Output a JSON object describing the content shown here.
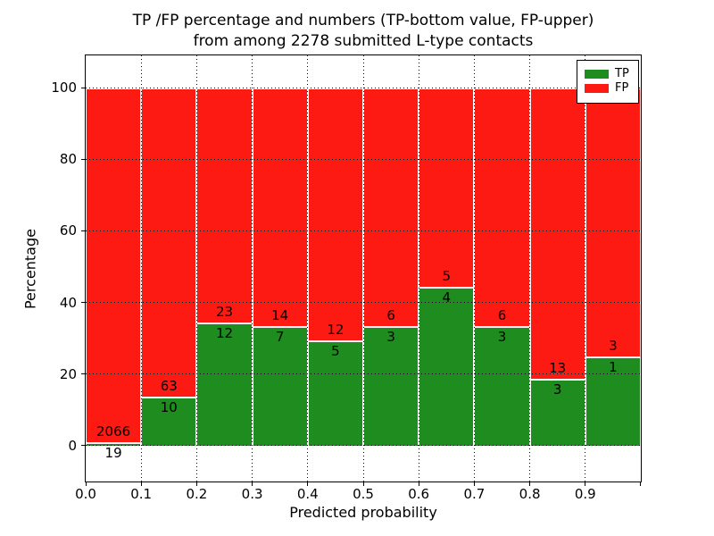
{
  "chart_data": {
    "type": "bar",
    "stacked": true,
    "title_lines": [
      "TP /FP percentage and numbers (TP-bottom value, FP-upper)",
      "from among 2278 submitted L-type contacts"
    ],
    "xlabel": "Predicted probability",
    "ylabel": "Percentage",
    "total_submitted": 2278,
    "xlim": [
      0.0,
      1.0
    ],
    "ylim": [
      -10,
      109
    ],
    "bin_width": 0.1,
    "grid": true,
    "legend_position": "upper right",
    "categories": [
      "0.0-0.1",
      "0.1-0.2",
      "0.2-0.3",
      "0.3-0.4",
      "0.4-0.5",
      "0.5-0.6",
      "0.6-0.7",
      "0.7-0.8",
      "0.8-0.9",
      "0.9-1.0"
    ],
    "x_tick_labels": [
      "0.0",
      "0.1",
      "0.2",
      "0.3",
      "0.4",
      "0.5",
      "0.6",
      "0.7",
      "0.8",
      "0.9"
    ],
    "y_ticks": [
      0,
      20,
      40,
      60,
      80,
      100
    ],
    "series": [
      {
        "name": "TP",
        "color": "#1e8c1e",
        "counts": [
          19,
          10,
          12,
          7,
          5,
          3,
          4,
          3,
          3,
          1
        ],
        "percent": [
          0.91,
          13.7,
          34.29,
          33.33,
          29.41,
          33.33,
          44.44,
          33.33,
          18.75,
          25.0
        ]
      },
      {
        "name": "FP",
        "color": "#fc1a13",
        "counts": [
          2066,
          63,
          23,
          14,
          12,
          6,
          5,
          6,
          13,
          3
        ],
        "percent": [
          99.09,
          86.3,
          65.71,
          66.67,
          70.59,
          66.67,
          55.56,
          66.67,
          81.25,
          75.0
        ]
      }
    ]
  },
  "legend": {
    "items": [
      {
        "label": "TP",
        "color": "#1e8c1e"
      },
      {
        "label": "FP",
        "color": "#fc1a13"
      }
    ]
  }
}
